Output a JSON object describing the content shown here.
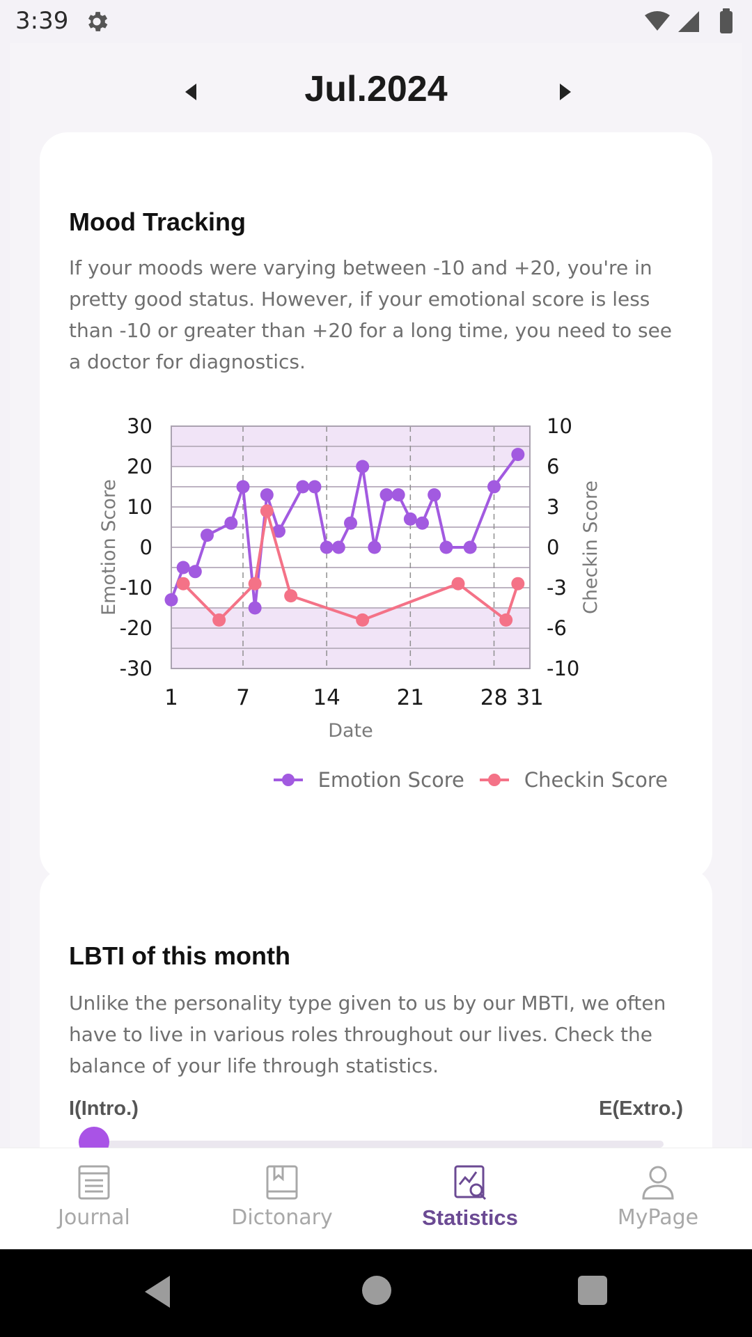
{
  "status_bar": {
    "time": "3:39",
    "icons": [
      "gear-icon",
      "wifi-icon",
      "signal-icon",
      "battery-icon"
    ]
  },
  "month_nav": {
    "label": "Jul.2024",
    "prev_icon": "caret-left-icon",
    "next_icon": "caret-right-icon"
  },
  "mood_card": {
    "title": "Mood Tracking",
    "description": "If your moods were varying between -10 and +20, you're in pretty good status. However, if your emotional score is less than -10 or greater than +20 for a long time, you need to see a doctor for diagnostics."
  },
  "chart_data": {
    "type": "line",
    "xlabel": "Date",
    "ylabel_left": "Emotion Score",
    "ylabel_right": "Checkin Score",
    "x_ticks": [
      "1",
      "7",
      "14",
      "21",
      "28",
      "31"
    ],
    "x_tick_values": [
      1,
      7,
      14,
      21,
      28,
      31
    ],
    "xlim": [
      1,
      31
    ],
    "y_left_ticks": [
      "30",
      "20",
      "10",
      "0",
      "-10",
      "-20",
      "-30"
    ],
    "y_left_range": [
      -30,
      30
    ],
    "y_right_ticks": [
      "10",
      "6",
      "3",
      "0",
      "-3",
      "-6",
      "-10"
    ],
    "y_right_range": [
      -10,
      10
    ],
    "shaded_bands_left_axis": [
      [
        20,
        30
      ],
      [
        -30,
        -15
      ]
    ],
    "grid": true,
    "legend_position": "bottom-right",
    "series": [
      {
        "name": "Emotion Score",
        "axis": "left",
        "color": "#a25ae0",
        "points": [
          [
            1,
            -13
          ],
          [
            2,
            -5
          ],
          [
            3,
            -6
          ],
          [
            4,
            3
          ],
          [
            6,
            6
          ],
          [
            7,
            15
          ],
          [
            8,
            -15
          ],
          [
            9,
            13
          ],
          [
            10,
            4
          ],
          [
            12,
            15
          ],
          [
            13,
            15
          ],
          [
            14,
            0
          ],
          [
            15,
            0
          ],
          [
            16,
            6
          ],
          [
            17,
            20
          ],
          [
            18,
            0
          ],
          [
            19,
            13
          ],
          [
            20,
            13
          ],
          [
            21,
            7
          ],
          [
            22,
            6
          ],
          [
            23,
            13
          ],
          [
            24,
            0
          ],
          [
            26,
            0
          ],
          [
            28,
            15
          ],
          [
            30,
            23
          ]
        ]
      },
      {
        "name": "Checkin Score",
        "axis": "right",
        "color": "#f47287",
        "points": [
          [
            2,
            -3
          ],
          [
            5,
            -6
          ],
          [
            8,
            -3
          ],
          [
            9,
            3
          ],
          [
            11,
            -4
          ],
          [
            17,
            -6
          ],
          [
            25,
            -3
          ],
          [
            29,
            -6
          ],
          [
            30,
            -3
          ]
        ]
      }
    ]
  },
  "lbti_card": {
    "title": "LBTI of this month",
    "description": "Unlike the personality type given to us by our MBTI, we often have to live in various roles throughout our lives. Check the balance of your life through statistics.",
    "left_label": "I(Intro.)",
    "right_label": "E(Extro.)",
    "value_fraction": 0.0
  },
  "bottom_nav": {
    "items": [
      {
        "label": "Journal",
        "icon": "journal-icon",
        "active": false
      },
      {
        "label": "Dictonary",
        "icon": "bookmark-book-icon",
        "active": false
      },
      {
        "label": "Statistics",
        "icon": "chart-search-icon",
        "active": true
      },
      {
        "label": "MyPage",
        "icon": "person-icon",
        "active": false
      }
    ]
  }
}
